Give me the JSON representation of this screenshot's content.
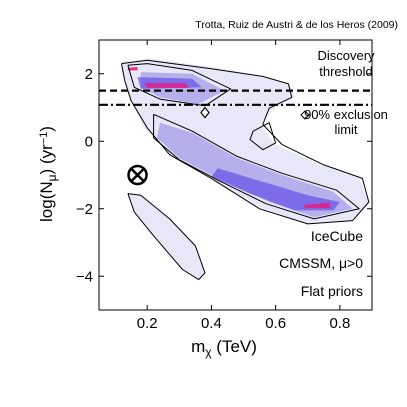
{
  "chart_data": {
    "type": "contour",
    "credit": "Trotta, Ruiz de Austri & de los Heros (2009)",
    "xlabel": {
      "base": "m",
      "sub": "χ",
      "unit": " (TeV)"
    },
    "ylabel": {
      "pre": "log(N",
      "sub": "μ",
      "mid": ") (yr",
      "sup": "−1",
      "post": ")"
    },
    "xlim": [
      0.05,
      0.9
    ],
    "ylim": [
      -5,
      3
    ],
    "x_ticks": [
      0.2,
      0.4,
      0.6,
      0.8
    ],
    "x_tick_labels": [
      "0.2",
      "0.4",
      "0.6",
      "0.8"
    ],
    "y_ticks": [
      -4,
      -2,
      0,
      2
    ],
    "y_tick_labels": [
      "−4",
      "−2",
      "0",
      "2"
    ],
    "grid": false,
    "discovery_threshold": {
      "y": 1.5,
      "label_lines": [
        "Discovery",
        "threshold"
      ],
      "style": "dashed"
    },
    "exclusion_limit": {
      "y": 1.08,
      "label_lines": [
        "90% exclusion",
        "limit"
      ],
      "style": "dash-dot"
    },
    "best_fit_marker": {
      "x": 0.17,
      "y": -1.0,
      "symbol": "circle-cross"
    },
    "posterior_mean_marker": {
      "x": 0.38,
      "y": 0.85,
      "symbol": "diamond"
    },
    "panel_text": [
      "IceCube",
      "CMSSM, μ>0",
      "Flat priors"
    ],
    "colors": {
      "density_low": "#e6e4f7",
      "density_mid": "#8a82e0",
      "density_high": "#6b56e6",
      "peak": "#e0208a",
      "contour": "#000000"
    },
    "density_regions": [
      {
        "level": "outer",
        "points": [
          [
            0.12,
            2.35
          ],
          [
            0.21,
            2.45
          ],
          [
            0.4,
            2.2
          ],
          [
            0.55,
            1.95
          ],
          [
            0.64,
            1.7
          ],
          [
            0.66,
            1.3
          ],
          [
            0.6,
            1.0
          ],
          [
            0.55,
            0.5
          ],
          [
            0.6,
            -0.1
          ],
          [
            0.74,
            -0.7
          ],
          [
            0.86,
            -1.1
          ],
          [
            0.89,
            -1.8
          ],
          [
            0.84,
            -2.35
          ],
          [
            0.7,
            -2.45
          ],
          [
            0.56,
            -2.0
          ],
          [
            0.4,
            -1.1
          ],
          [
            0.27,
            -0.4
          ],
          [
            0.19,
            0.4
          ],
          [
            0.15,
            1.2
          ],
          [
            0.13,
            1.8
          ]
        ]
      },
      {
        "level": "outer",
        "points": [
          [
            0.14,
            -1.55
          ],
          [
            0.18,
            -1.6
          ],
          [
            0.27,
            -2.3
          ],
          [
            0.35,
            -3.1
          ],
          [
            0.38,
            -3.9
          ],
          [
            0.36,
            -4.1
          ],
          [
            0.31,
            -3.8
          ],
          [
            0.22,
            -2.8
          ],
          [
            0.16,
            -2.1
          ]
        ]
      },
      {
        "level": "mid",
        "points": [
          [
            0.18,
            2.05
          ],
          [
            0.34,
            2.0
          ],
          [
            0.44,
            1.5
          ],
          [
            0.36,
            1.1
          ],
          [
            0.24,
            1.3
          ],
          [
            0.18,
            1.6
          ]
        ]
      },
      {
        "level": "mid",
        "points": [
          [
            0.24,
            0.55
          ],
          [
            0.34,
            0.25
          ],
          [
            0.48,
            -0.5
          ],
          [
            0.62,
            -1.0
          ],
          [
            0.78,
            -1.5
          ],
          [
            0.84,
            -2.0
          ],
          [
            0.72,
            -2.25
          ],
          [
            0.58,
            -1.8
          ],
          [
            0.42,
            -1.1
          ],
          [
            0.3,
            -0.5
          ],
          [
            0.23,
            0.1
          ]
        ]
      },
      {
        "level": "high",
        "points": [
          [
            0.17,
            1.9
          ],
          [
            0.34,
            1.85
          ],
          [
            0.37,
            1.6
          ],
          [
            0.18,
            1.55
          ]
        ]
      },
      {
        "level": "high",
        "points": [
          [
            0.42,
            -0.8
          ],
          [
            0.56,
            -1.2
          ],
          [
            0.7,
            -1.6
          ],
          [
            0.8,
            -1.8
          ],
          [
            0.78,
            -2.05
          ],
          [
            0.66,
            -2.05
          ],
          [
            0.52,
            -1.55
          ],
          [
            0.4,
            -1.05
          ]
        ]
      },
      {
        "level": "peak",
        "points": [
          [
            0.19,
            1.72
          ],
          [
            0.32,
            1.72
          ],
          [
            0.33,
            1.58
          ],
          [
            0.2,
            1.58
          ]
        ]
      },
      {
        "level": "peak",
        "points": [
          [
            0.14,
            2.18
          ],
          [
            0.17,
            2.2
          ],
          [
            0.17,
            2.1
          ],
          [
            0.14,
            2.1
          ]
        ]
      },
      {
        "level": "peak",
        "points": [
          [
            0.69,
            -1.88
          ],
          [
            0.77,
            -1.82
          ],
          [
            0.77,
            -1.98
          ],
          [
            0.69,
            -1.98
          ]
        ]
      }
    ],
    "contour_lines": [
      {
        "name": "outer-1",
        "points": [
          [
            0.12,
            2.3
          ],
          [
            0.2,
            2.4
          ],
          [
            0.4,
            2.15
          ],
          [
            0.56,
            1.92
          ],
          [
            0.64,
            1.7
          ],
          [
            0.65,
            1.3
          ],
          [
            0.58,
            0.98
          ],
          [
            0.56,
            0.5
          ],
          [
            0.62,
            -0.1
          ],
          [
            0.75,
            -0.7
          ],
          [
            0.87,
            -1.1
          ],
          [
            0.89,
            -1.8
          ],
          [
            0.84,
            -2.35
          ],
          [
            0.7,
            -2.45
          ],
          [
            0.55,
            -2.0
          ],
          [
            0.4,
            -1.1
          ],
          [
            0.27,
            -0.4
          ],
          [
            0.2,
            0.4
          ],
          [
            0.15,
            1.2
          ],
          [
            0.13,
            1.8
          ],
          [
            0.12,
            2.3
          ]
        ]
      },
      {
        "name": "outer-2",
        "points": [
          [
            0.14,
            -1.55
          ],
          [
            0.18,
            -1.6
          ],
          [
            0.27,
            -2.3
          ],
          [
            0.35,
            -3.1
          ],
          [
            0.38,
            -3.9
          ],
          [
            0.36,
            -4.1
          ],
          [
            0.31,
            -3.8
          ],
          [
            0.22,
            -2.8
          ],
          [
            0.16,
            -2.1
          ],
          [
            0.14,
            -1.55
          ]
        ]
      },
      {
        "name": "inner-top",
        "points": [
          [
            0.14,
            2.25
          ],
          [
            0.2,
            2.3
          ],
          [
            0.34,
            2.1
          ],
          [
            0.46,
            1.55
          ],
          [
            0.38,
            1.05
          ],
          [
            0.24,
            1.25
          ],
          [
            0.16,
            1.6
          ],
          [
            0.14,
            2.25
          ]
        ]
      },
      {
        "name": "inner-band",
        "points": [
          [
            0.22,
            0.8
          ],
          [
            0.34,
            0.3
          ],
          [
            0.48,
            -0.45
          ],
          [
            0.62,
            -0.95
          ],
          [
            0.79,
            -1.45
          ],
          [
            0.86,
            -2.0
          ],
          [
            0.72,
            -2.3
          ],
          [
            0.57,
            -1.85
          ],
          [
            0.42,
            -1.15
          ],
          [
            0.3,
            -0.55
          ],
          [
            0.22,
            0.1
          ],
          [
            0.22,
            0.8
          ]
        ]
      },
      {
        "name": "island",
        "points": [
          [
            0.53,
            0.3
          ],
          [
            0.58,
            0.55
          ],
          [
            0.6,
            -0.05
          ],
          [
            0.56,
            -0.25
          ],
          [
            0.52,
            0.05
          ],
          [
            0.53,
            0.3
          ]
        ]
      }
    ]
  }
}
